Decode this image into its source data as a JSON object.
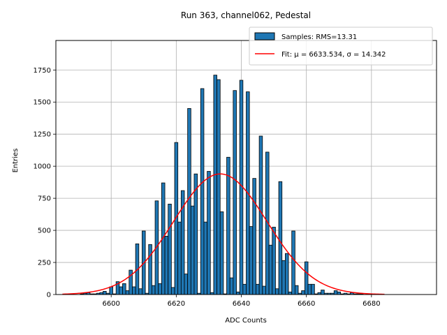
{
  "chart_data": {
    "type": "bar",
    "title": "Run 363, channel062, Pedestal",
    "xlabel": "ADC Counts",
    "ylabel": "Entries",
    "xlim": [
      6583,
      6700
    ],
    "ylim": [
      0,
      1980
    ],
    "xticks": [
      "6600",
      "6620",
      "6640",
      "6660",
      "6680"
    ],
    "yticks": [
      "0",
      "250",
      "500",
      "750",
      "1000",
      "1250",
      "1500",
      "1750"
    ],
    "grid": true,
    "legend_position": "top-right",
    "colors": {
      "bar_fill": "#1f77b4",
      "bar_edge": "#000000",
      "fit_line": "#ff0000",
      "grid": "#b0b0b0"
    },
    "histogram": {
      "name": "Samples: RMS=13.31",
      "bin_width": 1,
      "x": [
        6591,
        6592,
        6593,
        6594,
        6595,
        6596,
        6597,
        6598,
        6599,
        6600,
        6601,
        6602,
        6603,
        6604,
        6605,
        6606,
        6607,
        6608,
        6609,
        6610,
        6611,
        6612,
        6613,
        6614,
        6615,
        6616,
        6617,
        6618,
        6619,
        6620,
        6621,
        6622,
        6623,
        6624,
        6625,
        6626,
        6627,
        6628,
        6629,
        6630,
        6631,
        6632,
        6633,
        6634,
        6635,
        6636,
        6637,
        6638,
        6639,
        6640,
        6641,
        6642,
        6643,
        6644,
        6645,
        6646,
        6647,
        6648,
        6649,
        6650,
        6651,
        6652,
        6653,
        6654,
        6655,
        6656,
        6657,
        6658,
        6659,
        6660,
        6661,
        6662,
        6663,
        6664,
        6665,
        6666,
        6667,
        6668,
        6669,
        6670,
        6671,
        6672,
        6673,
        6674,
        6675,
        6676,
        6677
      ],
      "values": [
        5,
        10,
        15,
        5,
        5,
        10,
        15,
        25,
        10,
        60,
        5,
        100,
        60,
        85,
        30,
        190,
        60,
        395,
        45,
        495,
        10,
        390,
        70,
        730,
        85,
        870,
        455,
        705,
        55,
        1185,
        565,
        810,
        160,
        1450,
        690,
        940,
        10,
        1605,
        565,
        960,
        15,
        1710,
        1675,
        645,
        5,
        1070,
        130,
        1590,
        20,
        1670,
        80,
        1580,
        530,
        905,
        80,
        1235,
        65,
        1110,
        385,
        525,
        45,
        880,
        265,
        320,
        20,
        495,
        70,
        10,
        30,
        255,
        80,
        80,
        5,
        15,
        35,
        10,
        10,
        10,
        30,
        20,
        5,
        10,
        5,
        15,
        5,
        5,
        5
      ]
    },
    "fit": {
      "name": "Fit: μ = 6633.534, σ = 14.342",
      "mu": 6633.534,
      "sigma": 14.342,
      "amplitude": 940,
      "x_range": [
        6585,
        6684
      ]
    }
  }
}
